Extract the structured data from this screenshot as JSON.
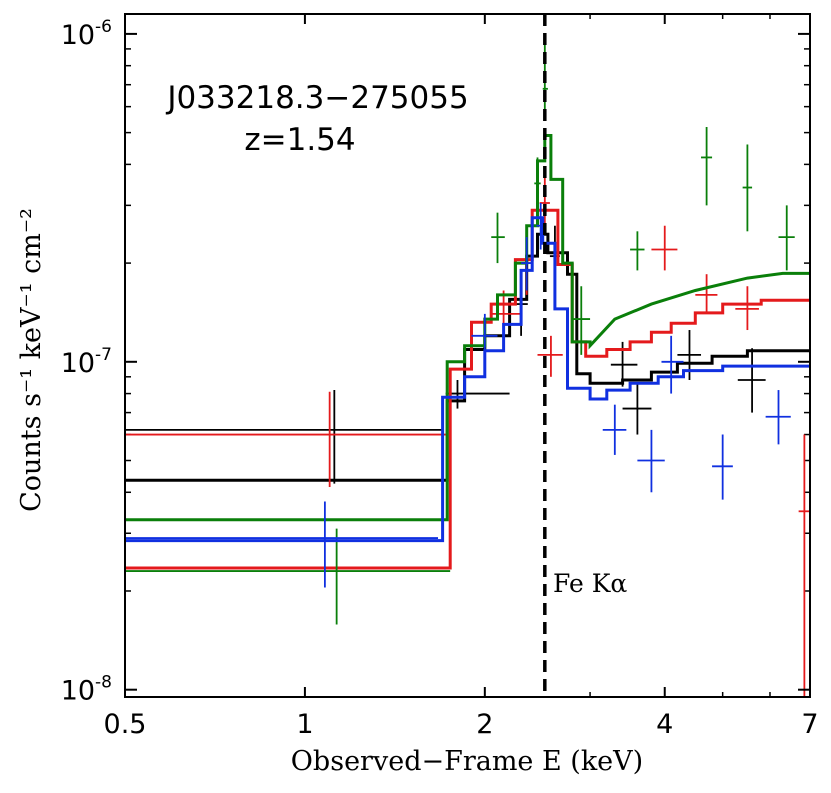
{
  "chart_data": {
    "type": "line",
    "title": "",
    "xlabel": "Observed−Frame E (keV)",
    "ylabel": "Counts s⁻¹ keV⁻¹ cm⁻²",
    "xscale": "log",
    "yscale": "log",
    "xlim": [
      0.5,
      7
    ],
    "ylim": [
      9.5e-09,
      1.15e-06
    ],
    "x_ticks": [
      {
        "value": 0.5,
        "label": "0.5"
      },
      {
        "value": 1,
        "label": "1"
      },
      {
        "value": 2,
        "label": "2"
      },
      {
        "value": 4,
        "label": "4"
      },
      {
        "value": 7,
        "label": "7"
      }
    ],
    "y_ticks": [
      {
        "value": 1e-08,
        "label": "10",
        "exponent": "-8"
      },
      {
        "value": 1e-07,
        "label": "10",
        "exponent": "-7"
      },
      {
        "value": 1e-06,
        "label": "10",
        "exponent": "-6"
      }
    ],
    "annotations": {
      "source_name": "J033218.3−275055",
      "redshift": "z=1.54",
      "line_label": "Fe Kα",
      "line_energy_keV": 2.52
    },
    "colors": {
      "black": "#000000",
      "red": "#e41a1c",
      "green": "#0a7f0a",
      "blue": "#1030e0"
    },
    "series": [
      {
        "name": "black",
        "model": [
          [
            0.5,
            4.35e-08
          ],
          [
            1.73,
            4.35e-08
          ],
          [
            1.73,
            7.6e-08
          ],
          [
            1.85,
            7.6e-08
          ],
          [
            1.85,
            1.09e-07
          ],
          [
            2.0,
            1.09e-07
          ],
          [
            2.0,
            1.2e-07
          ],
          [
            2.2,
            1.2e-07
          ],
          [
            2.2,
            1.55e-07
          ],
          [
            2.35,
            1.55e-07
          ],
          [
            2.35,
            2.1e-07
          ],
          [
            2.45,
            2.1e-07
          ],
          [
            2.45,
            2.45e-07
          ],
          [
            2.55,
            2.45e-07
          ],
          [
            2.55,
            2.15e-07
          ],
          [
            2.75,
            2.15e-07
          ],
          [
            2.75,
            1.85e-07
          ],
          [
            2.85,
            1.85e-07
          ],
          [
            2.85,
            9.2e-08
          ],
          [
            3.0,
            9.2e-08
          ],
          [
            3.0,
            8.6e-08
          ],
          [
            3.4,
            8.6e-08
          ],
          [
            3.4,
            8.8e-08
          ],
          [
            3.8,
            8.8e-08
          ],
          [
            3.8,
            9.3e-08
          ],
          [
            4.2,
            9.3e-08
          ],
          [
            4.2,
            9.9e-08
          ],
          [
            4.8,
            9.9e-08
          ],
          [
            4.8,
            1.04e-07
          ],
          [
            5.5,
            1.04e-07
          ],
          [
            5.5,
            1.08e-07
          ],
          [
            7,
            1.08e-07
          ]
        ],
        "points": [
          {
            "x": 0.5,
            "xlo": 0.5,
            "xhi": 1.7,
            "y": 6.2e-08,
            "ylo": 6.2e-08,
            "yhi": 6.2e-08
          },
          {
            "x": 1.12,
            "xlo": 1.12,
            "xhi": 1.12,
            "y": 5.5e-08,
            "ylo": 4.25e-08,
            "yhi": 8.2e-08
          },
          {
            "x": 1.8,
            "xlo": 1.72,
            "xhi": 2.2,
            "y": 8e-08,
            "ylo": 7.2e-08,
            "yhi": 8.8e-08
          },
          {
            "x": 2.3,
            "xlo": 2.25,
            "xhi": 2.36,
            "y": 1.5e-07,
            "ylo": 1.2e-07,
            "yhi": 1.9e-07
          },
          {
            "x": 2.62,
            "xlo": 2.57,
            "xhi": 2.67,
            "y": 2.1e-07,
            "ylo": 1.7e-07,
            "yhi": 2.6e-07
          },
          {
            "x": 3.4,
            "xlo": 3.25,
            "xhi": 3.6,
            "y": 9.8e-08,
            "ylo": 8.4e-08,
            "yhi": 1.15e-07
          },
          {
            "x": 3.6,
            "xlo": 3.4,
            "xhi": 3.8,
            "y": 7.2e-08,
            "ylo": 6e-08,
            "yhi": 8.6e-08
          },
          {
            "x": 4.4,
            "xlo": 4.2,
            "xhi": 4.6,
            "y": 1.05e-07,
            "ylo": 8.8e-08,
            "yhi": 1.25e-07
          },
          {
            "x": 5.6,
            "xlo": 5.3,
            "xhi": 5.9,
            "y": 8.8e-08,
            "ylo": 7e-08,
            "yhi": 1.1e-07
          }
        ]
      },
      {
        "name": "red",
        "model": [
          [
            0.5,
            2.35e-08
          ],
          [
            1.75,
            2.35e-08
          ],
          [
            1.75,
            9.5e-08
          ],
          [
            1.9,
            9.5e-08
          ],
          [
            1.9,
            1.32e-07
          ],
          [
            2.05,
            1.32e-07
          ],
          [
            2.05,
            1.5e-07
          ],
          [
            2.25,
            1.5e-07
          ],
          [
            2.25,
            2.05e-07
          ],
          [
            2.4,
            2.05e-07
          ],
          [
            2.4,
            2.9e-07
          ],
          [
            2.65,
            2.9e-07
          ],
          [
            2.65,
            1.98e-07
          ],
          [
            2.8,
            1.98e-07
          ],
          [
            2.8,
            1.15e-07
          ],
          [
            2.95,
            1.15e-07
          ],
          [
            2.95,
            1.04e-07
          ],
          [
            3.2,
            1.04e-07
          ],
          [
            3.2,
            1.09e-07
          ],
          [
            3.5,
            1.09e-07
          ],
          [
            3.5,
            1.15e-07
          ],
          [
            3.8,
            1.15e-07
          ],
          [
            3.8,
            1.23e-07
          ],
          [
            4.1,
            1.23e-07
          ],
          [
            4.1,
            1.31e-07
          ],
          [
            4.5,
            1.31e-07
          ],
          [
            4.5,
            1.41e-07
          ],
          [
            5.0,
            1.41e-07
          ],
          [
            5.0,
            1.5e-07
          ],
          [
            5.8,
            1.5e-07
          ],
          [
            5.8,
            1.54e-07
          ],
          [
            7,
            1.54e-07
          ]
        ],
        "points": [
          {
            "x": 0.5,
            "xlo": 0.5,
            "xhi": 1.72,
            "y": 6e-08,
            "ylo": 6e-08,
            "yhi": 6e-08
          },
          {
            "x": 1.1,
            "xlo": 1.1,
            "xhi": 1.1,
            "y": 6e-08,
            "ylo": 4.15e-08,
            "yhi": 8.1e-08
          },
          {
            "x": 2.15,
            "xlo": 2.05,
            "xhi": 2.3,
            "y": 1.4e-07,
            "ylo": 1.2e-07,
            "yhi": 1.65e-07
          },
          {
            "x": 2.35,
            "xlo": 2.3,
            "xhi": 2.4,
            "y": 2e-07,
            "ylo": 1.6e-07,
            "yhi": 2.35e-07
          },
          {
            "x": 2.52,
            "xlo": 2.47,
            "xhi": 2.57,
            "y": 3.05e-07,
            "ylo": 2.5e-07,
            "yhi": 3.8e-07
          },
          {
            "x": 2.58,
            "xlo": 2.45,
            "xhi": 2.7,
            "y": 1.05e-07,
            "ylo": 9e-08,
            "yhi": 1.2e-07
          },
          {
            "x": 4.0,
            "xlo": 3.8,
            "xhi": 4.2,
            "y": 2.2e-07,
            "ylo": 1.9e-07,
            "yhi": 2.6e-07
          },
          {
            "x": 4.7,
            "xlo": 4.5,
            "xhi": 4.9,
            "y": 1.6e-07,
            "ylo": 1.4e-07,
            "yhi": 1.85e-07
          },
          {
            "x": 5.5,
            "xlo": 5.25,
            "xhi": 5.75,
            "y": 1.45e-07,
            "ylo": 1.25e-07,
            "yhi": 1.7e-07
          },
          {
            "x": 6.85,
            "xlo": 6.7,
            "xhi": 7.0,
            "y": 3.5e-08,
            "ylo": 9.5e-09,
            "yhi": 6e-08
          }
        ]
      },
      {
        "name": "green",
        "model": [
          [
            0.5,
            3.3e-08
          ],
          [
            1.73,
            3.3e-08
          ],
          [
            1.73,
            1e-07
          ],
          [
            1.85,
            1e-07
          ],
          [
            1.85,
            1.12e-07
          ],
          [
            2.0,
            1.12e-07
          ],
          [
            2.0,
            1.35e-07
          ],
          [
            2.1,
            1.35e-07
          ],
          [
            2.1,
            1.6e-07
          ],
          [
            2.25,
            1.6e-07
          ],
          [
            2.25,
            2e-07
          ],
          [
            2.35,
            2e-07
          ],
          [
            2.35,
            2.6e-07
          ],
          [
            2.45,
            2.6e-07
          ],
          [
            2.45,
            4.1e-07
          ],
          [
            2.52,
            4.1e-07
          ],
          [
            2.52,
            4.9e-07
          ],
          [
            2.58,
            4.9e-07
          ],
          [
            2.58,
            3.6e-07
          ],
          [
            2.7,
            3.6e-07
          ],
          [
            2.7,
            2e-07
          ],
          [
            2.8,
            2e-07
          ],
          [
            2.8,
            1.15e-07
          ],
          [
            3.0,
            1.15e-07
          ],
          [
            3.0,
            1.12e-07
          ],
          [
            3.3,
            1.35e-07
          ],
          [
            3.8,
            1.5e-07
          ],
          [
            4.5,
            1.65e-07
          ],
          [
            5.5,
            1.8e-07
          ],
          [
            6.3,
            1.86e-07
          ],
          [
            7,
            1.86e-07
          ]
        ],
        "points": [
          {
            "x": 0.5,
            "xlo": 0.5,
            "xhi": 1.75,
            "y": 2.3e-08,
            "ylo": 2.3e-08,
            "yhi": 2.3e-08
          },
          {
            "x": 1.13,
            "xlo": 1.13,
            "xhi": 1.13,
            "y": 2.3e-08,
            "ylo": 1.58e-08,
            "yhi": 3.1e-08
          },
          {
            "x": 2.1,
            "xlo": 2.05,
            "xhi": 2.16,
            "y": 2.4e-07,
            "ylo": 2e-07,
            "yhi": 2.85e-07
          },
          {
            "x": 2.45,
            "xlo": 2.42,
            "xhi": 2.48,
            "y": 3.5e-07,
            "ylo": 3e-07,
            "yhi": 4.2e-07
          },
          {
            "x": 2.52,
            "xlo": 2.5,
            "xhi": 2.55,
            "y": 6.8e-07,
            "ylo": 5.5e-07,
            "yhi": 9.5e-07
          },
          {
            "x": 2.9,
            "xlo": 2.8,
            "xhi": 3.0,
            "y": 1.35e-07,
            "ylo": 1.05e-07,
            "yhi": 1.7e-07
          },
          {
            "x": 3.6,
            "xlo": 3.5,
            "xhi": 3.7,
            "y": 2.2e-07,
            "ylo": 1.9e-07,
            "yhi": 2.5e-07
          },
          {
            "x": 4.7,
            "xlo": 4.6,
            "xhi": 4.8,
            "y": 4.2e-07,
            "ylo": 3e-07,
            "yhi": 5.2e-07
          },
          {
            "x": 5.5,
            "xlo": 5.4,
            "xhi": 5.6,
            "y": 3.4e-07,
            "ylo": 2.5e-07,
            "yhi": 4.6e-07
          },
          {
            "x": 6.4,
            "xlo": 6.2,
            "xhi": 6.6,
            "y": 2.4e-07,
            "ylo": 1.9e-07,
            "yhi": 3e-07
          }
        ]
      },
      {
        "name": "blue",
        "model": [
          [
            0.5,
            2.85e-08
          ],
          [
            1.7,
            2.85e-08
          ],
          [
            1.7,
            7.8e-08
          ],
          [
            1.85,
            7.8e-08
          ],
          [
            1.85,
            9e-08
          ],
          [
            2.0,
            9e-08
          ],
          [
            2.0,
            1.08e-07
          ],
          [
            2.15,
            1.08e-07
          ],
          [
            2.15,
            1.3e-07
          ],
          [
            2.3,
            1.3e-07
          ],
          [
            2.3,
            1.9e-07
          ],
          [
            2.4,
            1.9e-07
          ],
          [
            2.4,
            2.75e-07
          ],
          [
            2.5,
            2.75e-07
          ],
          [
            2.5,
            2.3e-07
          ],
          [
            2.62,
            2.3e-07
          ],
          [
            2.62,
            1.45e-07
          ],
          [
            2.75,
            1.45e-07
          ],
          [
            2.75,
            8.3e-08
          ],
          [
            3.0,
            8.3e-08
          ],
          [
            3.0,
            7.7e-08
          ],
          [
            3.2,
            7.7e-08
          ],
          [
            3.2,
            8.2e-08
          ],
          [
            3.5,
            8.2e-08
          ],
          [
            3.5,
            8.6e-08
          ],
          [
            3.9,
            8.6e-08
          ],
          [
            3.9,
            9e-08
          ],
          [
            4.3,
            9e-08
          ],
          [
            4.3,
            9.4e-08
          ],
          [
            5.0,
            9.4e-08
          ],
          [
            5.0,
            9.7e-08
          ],
          [
            7,
            9.7e-08
          ]
        ],
        "points": [
          {
            "x": 0.5,
            "xlo": 0.5,
            "xhi": 1.67,
            "y": 2.9e-08,
            "ylo": 2.9e-08,
            "yhi": 2.9e-08
          },
          {
            "x": 1.08,
            "xlo": 1.08,
            "xhi": 1.08,
            "y": 2.9e-08,
            "ylo": 2.05e-08,
            "yhi": 3.75e-08
          },
          {
            "x": 2.0,
            "xlo": 1.9,
            "xhi": 2.1,
            "y": 1.2e-07,
            "ylo": 1e-07,
            "yhi": 1.4e-07
          },
          {
            "x": 2.35,
            "xlo": 2.3,
            "xhi": 2.4,
            "y": 2e-07,
            "ylo": 1.65e-07,
            "yhi": 2.4e-07
          },
          {
            "x": 2.48,
            "xlo": 2.44,
            "xhi": 2.52,
            "y": 2.6e-07,
            "ylo": 2.2e-07,
            "yhi": 3.05e-07
          },
          {
            "x": 3.3,
            "xlo": 3.15,
            "xhi": 3.45,
            "y": 6.2e-08,
            "ylo": 5.2e-08,
            "yhi": 7.4e-08
          },
          {
            "x": 3.8,
            "xlo": 3.6,
            "xhi": 4.0,
            "y": 5e-08,
            "ylo": 4e-08,
            "yhi": 6.2e-08
          },
          {
            "x": 4.1,
            "xlo": 3.95,
            "xhi": 4.3,
            "y": 1e-07,
            "ylo": 8e-08,
            "yhi": 1.2e-07
          },
          {
            "x": 5.0,
            "xlo": 4.8,
            "xhi": 5.2,
            "y": 4.8e-08,
            "ylo": 3.8e-08,
            "yhi": 6e-08
          },
          {
            "x": 6.2,
            "xlo": 5.9,
            "xhi": 6.5,
            "y": 6.8e-08,
            "ylo": 5.6e-08,
            "yhi": 8.2e-08
          }
        ]
      }
    ]
  }
}
